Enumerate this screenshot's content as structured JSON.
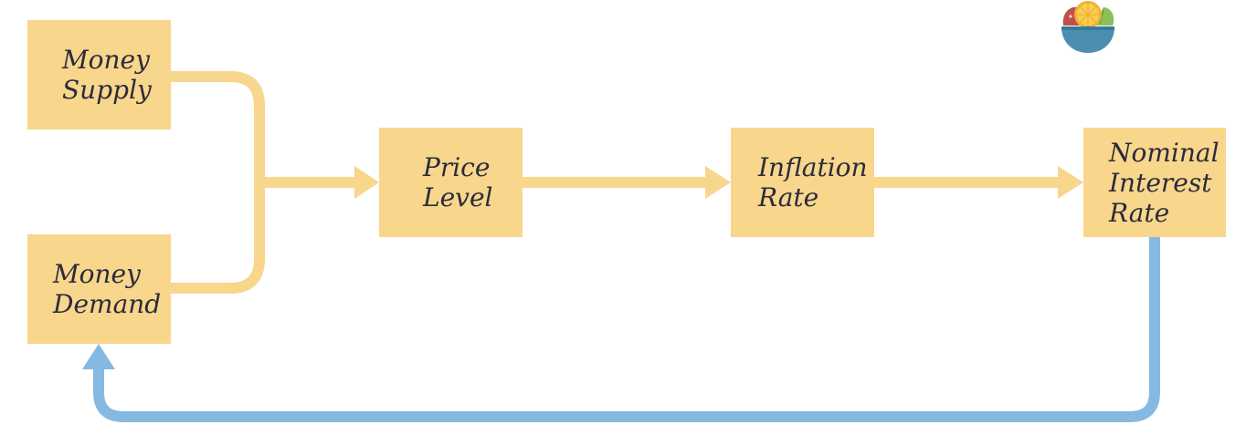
{
  "diagram": {
    "nodes": {
      "money_supply": {
        "line1": "Money",
        "line2": "Supply"
      },
      "money_demand": {
        "line1": "Money",
        "line2": "Demand"
      },
      "price_level": {
        "line1": "Price",
        "line2": "Level"
      },
      "inflation_rate": {
        "line1": "Inflation",
        "line2": "Rate"
      },
      "nominal_interest_rate": {
        "line1": "Nominal",
        "line2": "Interest",
        "line3": "Rate"
      }
    },
    "colors": {
      "node_fill": "#f8d68c",
      "forward_arrow": "#f8d68c",
      "feedback_arrow": "#85b9e2",
      "text": "#2b2b3a"
    },
    "logo": {
      "icon": "fruit-bowl-icon"
    }
  }
}
